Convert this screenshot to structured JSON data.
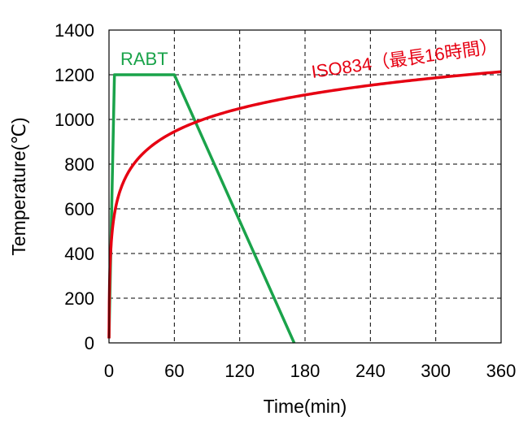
{
  "chart_data": {
    "type": "line",
    "title": "",
    "xlabel": "Time(min)",
    "ylabel": "Temperature(℃)",
    "xlim": [
      0,
      360
    ],
    "ylim": [
      0,
      1400
    ],
    "xticks": [
      0,
      60,
      120,
      180,
      240,
      300,
      360
    ],
    "yticks": [
      0,
      200,
      400,
      600,
      800,
      1000,
      1200,
      1400
    ],
    "grid": true,
    "series": [
      {
        "name": "RABT",
        "color": "#1aa34a",
        "points": [
          [
            0,
            20
          ],
          [
            5,
            1200
          ],
          [
            60,
            1200
          ],
          [
            170,
            0
          ]
        ]
      },
      {
        "name": "ISO834（最長16時間）",
        "color": "#e60012",
        "curve": "ISO834",
        "x": [
          0,
          1,
          5,
          10,
          20,
          30,
          60,
          80,
          120,
          180,
          240,
          300,
          360
        ],
        "values": [
          20,
          349,
          576,
          678,
          781,
          842,
          945,
          985,
          1049,
          1110,
          1153,
          1186,
          1214
        ]
      }
    ]
  }
}
